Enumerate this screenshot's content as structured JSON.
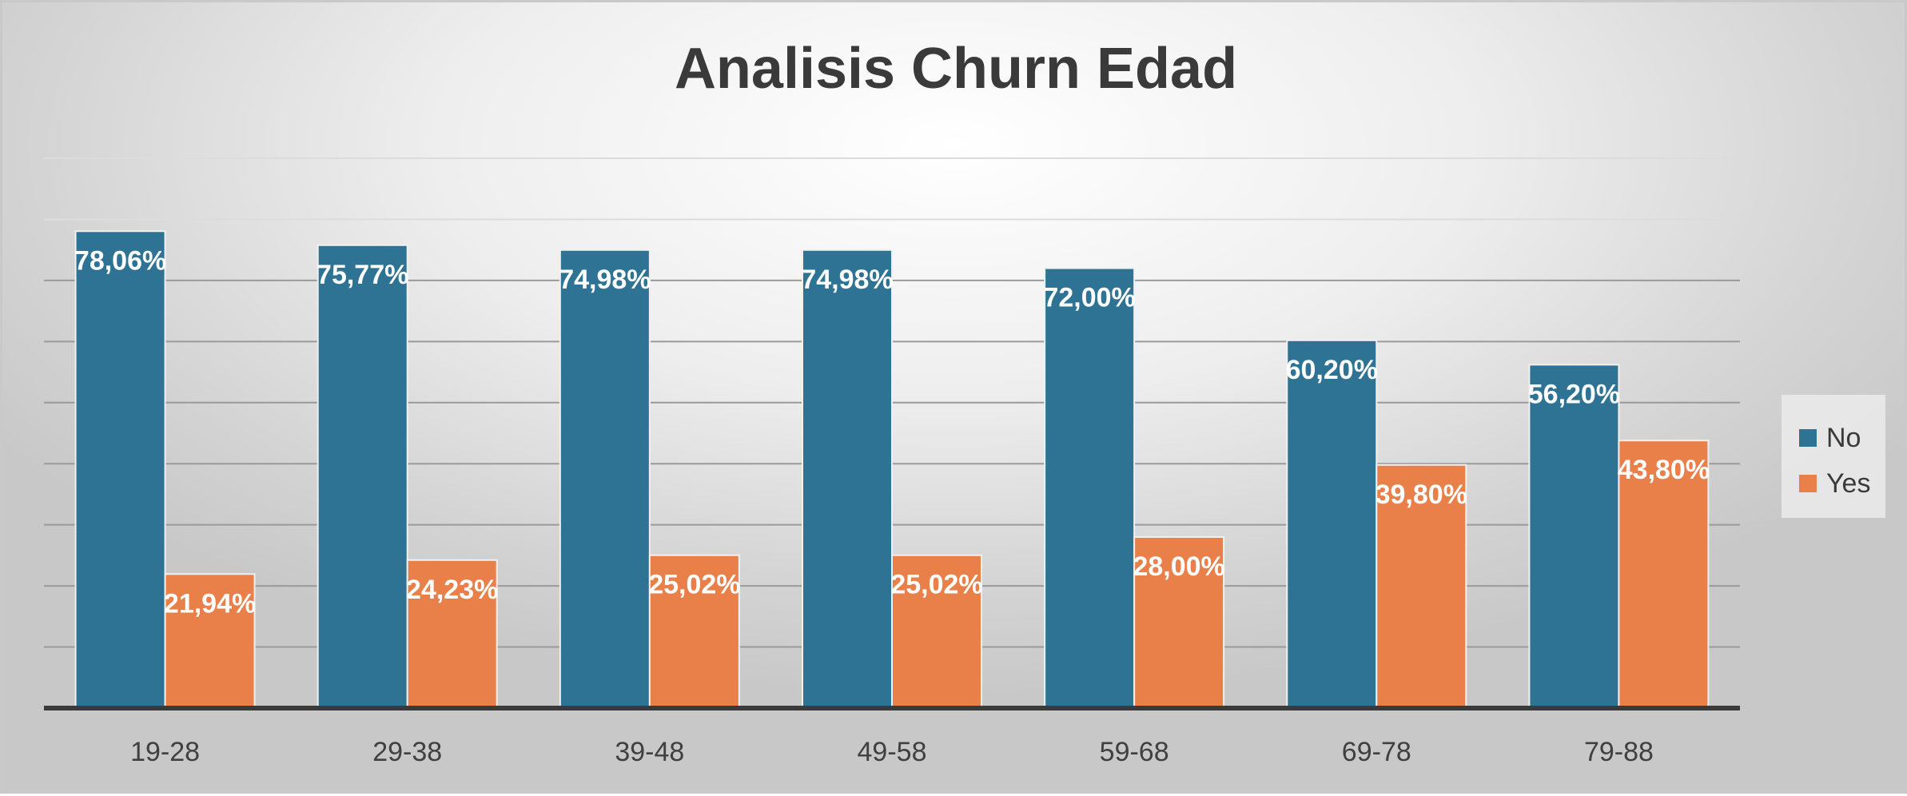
{
  "chart_data": {
    "type": "bar",
    "title": "Analisis Churn Edad",
    "xlabel": "",
    "ylabel": "",
    "categories": [
      "19-28",
      "29-38",
      "39-48",
      "49-58",
      "59-68",
      "69-78",
      "79-88"
    ],
    "series": [
      {
        "name": "No",
        "color": "#2e7394",
        "values": [
          78.06,
          75.77,
          74.98,
          74.98,
          72.0,
          60.2,
          56.2
        ],
        "labels": [
          "78,06%",
          "75,77%",
          "74,98%",
          "74,98%",
          "72,00%",
          "60,20%",
          "56,20%"
        ]
      },
      {
        "name": "Yes",
        "color": "#ea8049",
        "values": [
          21.94,
          24.23,
          25.02,
          25.02,
          28.0,
          39.8,
          43.8
        ],
        "labels": [
          "21,94%",
          "24,23%",
          "25,02%",
          "25,02%",
          "28,00%",
          "39,80%",
          "43,80%"
        ]
      }
    ],
    "ylim": [
      0,
      90
    ],
    "grid": true,
    "legend_position": "right"
  }
}
